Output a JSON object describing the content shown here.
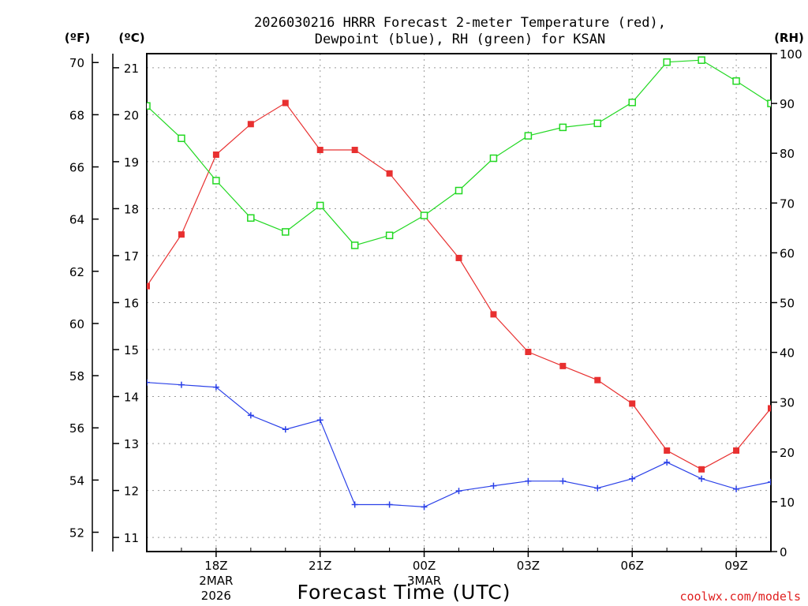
{
  "chart_data": {
    "type": "line",
    "title_line1": "2026030216 HRRR Forecast 2-meter Temperature (red),",
    "title_line2": "Dewpoint (blue), RH (green) for KSAN",
    "xlabel": "Forecast Time (UTC)",
    "credit": "coolwx.com/models",
    "axis_labels": {
      "fahrenheit": "(ºF)",
      "celsius": "(ºC)",
      "rh": "(RH)"
    },
    "x_hours": [
      16,
      17,
      18,
      19,
      20,
      21,
      22,
      23,
      24,
      25,
      26,
      27,
      28,
      29,
      30,
      31,
      32,
      33,
      34
    ],
    "xlim": [
      16,
      34
    ],
    "x_ticks": [
      {
        "hour": 18,
        "label": "18Z",
        "sub1": "2MAR",
        "sub2": "2026"
      },
      {
        "hour": 21,
        "label": "21Z",
        "sub1": "",
        "sub2": ""
      },
      {
        "hour": 24,
        "label": "00Z",
        "sub1": "3MAR",
        "sub2": ""
      },
      {
        "hour": 27,
        "label": "03Z",
        "sub1": "",
        "sub2": ""
      },
      {
        "hour": 30,
        "label": "06Z",
        "sub1": "",
        "sub2": ""
      },
      {
        "hour": 33,
        "label": "09Z",
        "sub1": "",
        "sub2": ""
      }
    ],
    "celsius_axis": {
      "ylim": [
        10.7,
        21.3
      ],
      "ticks": [
        "11",
        "12",
        "13",
        "14",
        "15",
        "16",
        "17",
        "18",
        "19",
        "20",
        "21"
      ]
    },
    "fahrenheit_axis": {
      "ticks": [
        "52",
        "54",
        "56",
        "58",
        "60",
        "62",
        "64",
        "66",
        "68",
        "70"
      ]
    },
    "rh_axis": {
      "ylim": [
        0,
        100
      ],
      "ticks": [
        "0",
        "10",
        "20",
        "30",
        "40",
        "50",
        "60",
        "70",
        "80",
        "90",
        "100"
      ]
    },
    "series": [
      {
        "name": "2-meter Temperature",
        "axis": "celsius",
        "color": "#e83030",
        "marker": "filled-square",
        "values": [
          16.35,
          17.45,
          19.15,
          19.8,
          20.25,
          19.25,
          19.25,
          18.75,
          17.85,
          16.95,
          15.75,
          14.95,
          14.65,
          14.35,
          13.85,
          12.85,
          12.45,
          12.85,
          13.75
        ]
      },
      {
        "name": "Dewpoint",
        "axis": "celsius",
        "color": "#2a40e8",
        "marker": "plus",
        "values": [
          14.3,
          14.25,
          14.2,
          13.6,
          13.3,
          13.5,
          11.7,
          11.7,
          11.65,
          11.99,
          12.1,
          12.2,
          12.2,
          12.05,
          12.25,
          12.6,
          12.25,
          12.03,
          12.18
        ]
      },
      {
        "name": "RH",
        "axis": "rh",
        "color": "#22d822",
        "marker": "open-square",
        "values": [
          89.5,
          83,
          74.5,
          67,
          64.2,
          69.5,
          61.5,
          63.5,
          67.5,
          72.5,
          79,
          83.5,
          85.2,
          86,
          90.2,
          98.3,
          98.7,
          94.5,
          90
        ]
      }
    ]
  }
}
